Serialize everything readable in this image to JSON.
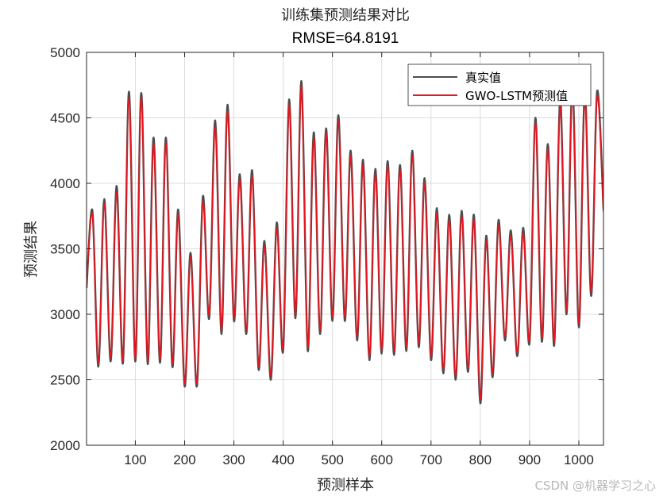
{
  "chart_data": {
    "type": "line",
    "title": "训练集预测结果对比",
    "subtitle": "RMSE=64.8191",
    "xlabel": "预测样本",
    "ylabel": "预测结果",
    "xlim": [
      1,
      1050
    ],
    "ylim": [
      2000,
      5000
    ],
    "xticks": [
      100,
      200,
      300,
      400,
      500,
      600,
      700,
      800,
      900,
      1000
    ],
    "yticks": [
      2000,
      2500,
      3000,
      3500,
      4000,
      4500,
      5000
    ],
    "grid": true,
    "legend_position": "top-right",
    "x": [
      1,
      13,
      25,
      37,
      50,
      62,
      75,
      87,
      100,
      112,
      125,
      137,
      150,
      162,
      175,
      187,
      200,
      212,
      225,
      237,
      250,
      262,
      275,
      287,
      300,
      312,
      325,
      337,
      350,
      362,
      375,
      387,
      400,
      412,
      425,
      437,
      450,
      462,
      475,
      487,
      500,
      512,
      525,
      537,
      550,
      562,
      575,
      587,
      600,
      612,
      625,
      637,
      650,
      662,
      675,
      687,
      700,
      712,
      725,
      737,
      750,
      762,
      775,
      787,
      800,
      812,
      825,
      837,
      850,
      862,
      875,
      887,
      900,
      912,
      925,
      937,
      950,
      962,
      975,
      987,
      1000,
      1012,
      1025,
      1037,
      1050
    ],
    "series": [
      {
        "name": "真实值",
        "color": "#4d4d4d",
        "values": [
          3200,
          3790,
          2600,
          3880,
          2640,
          3980,
          2630,
          4700,
          2640,
          4690,
          2620,
          4350,
          2630,
          4350,
          2600,
          3800,
          2450,
          3470,
          2450,
          3900,
          2970,
          4480,
          2850,
          4600,
          2950,
          4070,
          2850,
          4100,
          2580,
          3560,
          2500,
          3700,
          2720,
          4640,
          2970,
          4780,
          2720,
          4390,
          2850,
          4420,
          2950,
          4520,
          2950,
          4250,
          2800,
          4180,
          2650,
          4110,
          2700,
          4170,
          2690,
          4140,
          2720,
          4250,
          2750,
          4040,
          2650,
          3810,
          2550,
          3760,
          2500,
          3790,
          2560,
          3760,
          2320,
          3600,
          2520,
          3720,
          2800,
          3640,
          2680,
          3660,
          2780,
          4500,
          2790,
          4300,
          2760,
          4650,
          3000,
          4760,
          2900,
          4700,
          3140,
          4700,
          3800
        ]
      },
      {
        "name": "GWO-LSTM预测值",
        "color": "#e8141e",
        "values": [
          3230,
          3760,
          2630,
          3840,
          2670,
          3930,
          2650,
          4650,
          2660,
          4660,
          2640,
          4300,
          2660,
          4310,
          2630,
          3760,
          2470,
          3440,
          2480,
          3860,
          3000,
          4430,
          2880,
          4550,
          2980,
          4030,
          2880,
          4060,
          2610,
          3520,
          2530,
          3660,
          2750,
          4600,
          3000,
          4740,
          2750,
          4350,
          2880,
          4380,
          2980,
          4480,
          2980,
          4210,
          2830,
          4140,
          2680,
          4070,
          2730,
          4130,
          2720,
          4100,
          2750,
          4210,
          2780,
          4000,
          2680,
          3770,
          2580,
          3720,
          2530,
          3750,
          2590,
          3720,
          2350,
          3560,
          2550,
          3680,
          2830,
          3600,
          2710,
          3620,
          2810,
          4460,
          2820,
          4260,
          2790,
          4610,
          3030,
          4720,
          2930,
          4660,
          3170,
          4660,
          3780
        ]
      }
    ]
  },
  "watermark": "CSDN @机器学习之心"
}
